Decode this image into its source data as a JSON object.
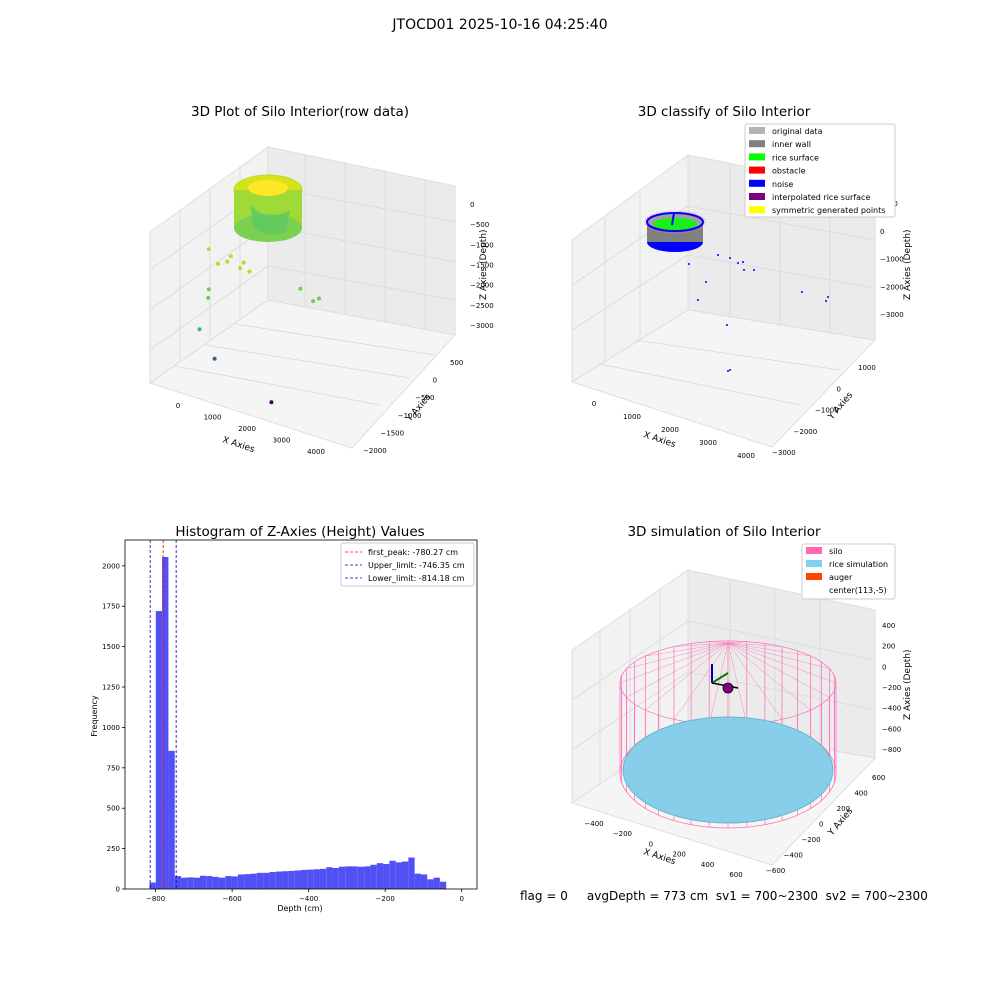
{
  "suptitle": "JTOCD01 2025-10-16 04:25:40",
  "status_line": "flag = 0     avgDepth = 773 cm  sv1 = 700~2300  sv2 = 700~2300",
  "chart_data": [
    {
      "type": "scatter",
      "title": "3D Plot of Silo Interior(row data)",
      "xlabel": "X Axies",
      "ylabel": "Y Axies",
      "zlabel": "Z Axies (Depth)",
      "xticks": [
        "0",
        "1000",
        "2000",
        "3000",
        "4000"
      ],
      "yticks": [
        "500",
        "0",
        "−500",
        "−1000",
        "−1500",
        "−2000"
      ],
      "zticks": [
        "0",
        "−500",
        "−1000",
        "−1500",
        "−2000",
        "−2500",
        "−3000"
      ],
      "colormap": "viridis",
      "points_xyz": [
        [
          1100,
          300,
          -700
        ],
        [
          1600,
          100,
          -800
        ],
        [
          1800,
          0,
          -1000
        ],
        [
          2000,
          -100,
          -1050
        ],
        [
          1900,
          0,
          -900
        ],
        [
          1500,
          100,
          -900
        ],
        [
          1300,
          200,
          -950
        ],
        [
          1100,
          300,
          -1400
        ],
        [
          1050,
          250,
          -1550
        ],
        [
          3200,
          -500,
          -1300
        ],
        [
          3500,
          -600,
          -1500
        ],
        [
          3600,
          -700,
          -1450
        ],
        [
          900,
          400,
          -2100
        ],
        [
          1200,
          200,
          -2600
        ],
        [
          2500,
          -300,
          -3300
        ]
      ]
    },
    {
      "type": "scatter",
      "title": "3D classify of Silo Interior",
      "xlabel": "X Axies",
      "ylabel": "Y Axies",
      "zlabel": "Z Axies (Depth)",
      "xticks": [
        "0",
        "1000",
        "2000",
        "3000",
        "4000"
      ],
      "yticks": [
        "1000",
        "0",
        "−1000",
        "−2000",
        "−3000"
      ],
      "zticks": [
        "1000",
        "0",
        "−1000",
        "−2000",
        "−3000"
      ],
      "legend": [
        {
          "label": "original data",
          "color": "#b3b3b3"
        },
        {
          "label": "inner wall",
          "color": "#808080"
        },
        {
          "label": "rice surface",
          "color": "#00ff00"
        },
        {
          "label": "obstacle",
          "color": "#ff0000"
        },
        {
          "label": "noise",
          "color": "#0000ff"
        },
        {
          "label": "interpolated rice surface",
          "color": "#800080"
        },
        {
          "label": "symmetric generated points",
          "color": "#ffff00"
        }
      ]
    },
    {
      "type": "bar",
      "title": "Histogram of Z-Axies (Height) Values",
      "xlabel": "Depth (cm)",
      "ylabel": "Frequency",
      "xlim": [
        -880,
        40
      ],
      "ylim": [
        0,
        2160
      ],
      "xticks": [
        -800,
        -600,
        -400,
        -200,
        0
      ],
      "yticks": [
        0,
        250,
        500,
        750,
        1000,
        1250,
        1500,
        1750,
        2000
      ],
      "bar_color": "#5050f5",
      "bin_width": 16.5,
      "bin_start": -816,
      "values": [
        40,
        1720,
        2055,
        855,
        80,
        70,
        72,
        70,
        82,
        80,
        75,
        70,
        80,
        78,
        90,
        92,
        95,
        100,
        100,
        105,
        108,
        110,
        112,
        115,
        118,
        120,
        122,
        125,
        135,
        130,
        138,
        140,
        140,
        138,
        140,
        150,
        160,
        155,
        175,
        165,
        170,
        195,
        95,
        90,
        60,
        70,
        45
      ],
      "lines": [
        {
          "label": "first_peak: -780.27 cm",
          "x": -780.27,
          "color": "#ff0000"
        },
        {
          "label": "Upper_limit: -746.35 cm",
          "x": -746.35,
          "color": "#0000aa"
        },
        {
          "label": "Lower_limit: -814.18 cm",
          "x": -814.18,
          "color": "#0000aa"
        }
      ]
    },
    {
      "type": "scatter",
      "title": "3D simulation of Silo Interior",
      "xlabel": "X Axies",
      "ylabel": "Y Axies",
      "zlabel": "Z Axies (Depth)",
      "xticks": [
        "−400",
        "−200",
        "0",
        "200",
        "400",
        "600"
      ],
      "yticks": [
        "600",
        "400",
        "200",
        "0",
        "−200",
        "−400",
        "−600"
      ],
      "zticks": [
        "400",
        "200",
        "0",
        "−200",
        "−400",
        "−600",
        "−800"
      ],
      "legend": [
        {
          "label": "silo",
          "color": "#ff69b4"
        },
        {
          "label": "rice simulation",
          "color": "#87ceeb"
        },
        {
          "label": "auger",
          "color": "#ff4500"
        },
        {
          "label": "center(113,-5)",
          "color": ""
        }
      ]
    }
  ]
}
